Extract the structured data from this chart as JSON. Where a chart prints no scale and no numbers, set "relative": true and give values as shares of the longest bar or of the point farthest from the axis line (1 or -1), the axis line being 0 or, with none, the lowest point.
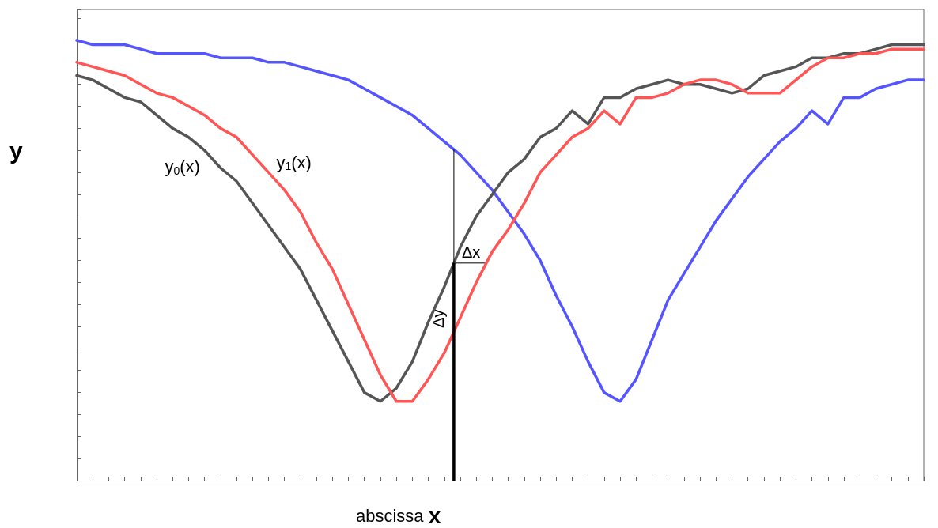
{
  "chart_data": {
    "type": "line",
    "relative": true,
    "xlabel": "abscissa x",
    "ylabel": "y",
    "grid": false,
    "legend": false,
    "marker": "none",
    "line_style": "solid",
    "categories": [
      null,
      null,
      null,
      null,
      null,
      null,
      null,
      null,
      null,
      null,
      null,
      null,
      null,
      null,
      null,
      null,
      null,
      null,
      null,
      null,
      null,
      null,
      null,
      null,
      null,
      null,
      null,
      null,
      null,
      null,
      null,
      null,
      null,
      null,
      null,
      null,
      null,
      null,
      null,
      null,
      null,
      null,
      null,
      null,
      null,
      null,
      null,
      null,
      null,
      null,
      null,
      null,
      null,
      null
    ],
    "series": [
      {
        "color": "#5555ff",
        "values": [
          1.0,
          0.99,
          0.99,
          0.99,
          0.98,
          0.97,
          0.97,
          0.97,
          0.97,
          0.96,
          0.96,
          0.96,
          0.95,
          0.95,
          0.94,
          0.93,
          0.92,
          0.91,
          0.89,
          0.87,
          0.85,
          0.83,
          0.8,
          0.77,
          0.74,
          0.7,
          0.66,
          0.61,
          0.56,
          0.5,
          0.42,
          0.35,
          0.27,
          0.2,
          0.18,
          0.23,
          0.32,
          0.41,
          0.47,
          0.53,
          0.59,
          0.64,
          0.69,
          0.73,
          0.77,
          0.8,
          0.84,
          0.81,
          0.87,
          0.87,
          0.89,
          0.9,
          0.91,
          0.91
        ]
      },
      {
        "name": "y$_{0}$(x)",
        "color": "#555555",
        "values": [
          0.92,
          0.91,
          0.89,
          0.87,
          0.86,
          0.83,
          0.8,
          0.78,
          0.75,
          0.71,
          0.68,
          0.63,
          0.58,
          0.53,
          0.48,
          0.41,
          0.34,
          0.27,
          0.2,
          0.18,
          0.21,
          0.27,
          0.36,
          0.44,
          0.53,
          0.6,
          0.65,
          0.7,
          0.73,
          0.78,
          0.8,
          0.84,
          0.81,
          0.87,
          0.87,
          0.89,
          0.9,
          0.91,
          0.9,
          0.9,
          0.89,
          0.88,
          0.89,
          0.92,
          0.93,
          0.94,
          0.96,
          0.96,
          0.97,
          0.97,
          0.98,
          0.99,
          0.99,
          0.99
        ]
      },
      {
        "name": "y$_{1}$(x)",
        "color": "#ff5555",
        "values": [
          0.95,
          0.94,
          0.93,
          0.92,
          0.9,
          0.88,
          0.87,
          0.85,
          0.83,
          0.8,
          0.78,
          0.74,
          0.7,
          0.66,
          0.61,
          0.54,
          0.48,
          0.4,
          0.32,
          0.24,
          0.18,
          0.18,
          0.23,
          0.29,
          0.37,
          0.45,
          0.52,
          0.57,
          0.63,
          0.7,
          0.74,
          0.78,
          0.8,
          0.84,
          0.81,
          0.87,
          0.87,
          0.88,
          0.9,
          0.91,
          0.91,
          0.9,
          0.88,
          0.88,
          0.88,
          0.91,
          0.94,
          0.96,
          0.96,
          0.97,
          0.97,
          0.98,
          0.98,
          0.98
        ]
      }
    ],
    "annotations": [
      "Δx",
      "Δy"
    ]
  }
}
